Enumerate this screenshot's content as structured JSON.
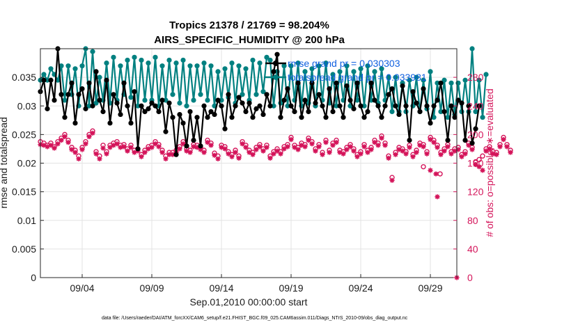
{
  "chart_data": {
    "type": "line",
    "title": "Tropics 21378 / 21769 = 98.204%",
    "subtitle": "AIRS_SPECIFIC_HUMIDITY @ 200 hPa",
    "xlabel": "Sep.01,2010 00:00:00 start",
    "ylabel": "rmse and totalspread",
    "ylabel_right": "# of obs: o=possible; ∗=evaluated",
    "x_ticks": [
      "09/04",
      "09/09",
      "09/14",
      "09/19",
      "09/24",
      "09/29"
    ],
    "x_tick_days": [
      4,
      9,
      14,
      19,
      24,
      29
    ],
    "xlim": [
      1.0,
      30.9
    ],
    "ylim": [
      0,
      0.04
    ],
    "y_ticks": [
      0,
      0.005,
      0.01,
      0.015,
      0.02,
      0.025,
      0.03,
      0.035
    ],
    "y_tick_labels": [
      "0",
      "0.005",
      "0.01",
      "0.015",
      "0.02",
      "0.025",
      "0.03",
      "0.035"
    ],
    "ylim_right": [
      0,
      320
    ],
    "y_ticks_right": [
      0,
      40,
      80,
      120,
      160,
      200,
      240,
      280
    ],
    "y_tick_labels_right": [
      "0",
      "40",
      "80",
      "120",
      "160",
      "200",
      "240",
      "280"
    ],
    "grid": true,
    "legend": [
      {
        "label": "rmse grand pr = 0.030303",
        "series": "rmse"
      },
      {
        "label": "totalspread grand pr = 0.033981",
        "series": "totalspread"
      }
    ],
    "colors": {
      "rmse": "#000000",
      "totalspread": "#008080",
      "obs": "#d4145a",
      "legend_text": "#1060e0"
    },
    "series": [
      {
        "name": "rmse",
        "step_days": 0.25,
        "start_day": 1.0,
        "values": [
          0.0325,
          0.0345,
          0.0295,
          0.0345,
          0.031,
          0.04,
          0.032,
          0.028,
          0.032,
          0.034,
          0.027,
          0.032,
          0.033,
          0.0295,
          0.034,
          0.03,
          0.036,
          0.031,
          0.029,
          0.0345,
          0.027,
          0.032,
          0.0305,
          0.0285,
          0.034,
          0.03,
          0.027,
          0.0325,
          0.0225,
          0.03,
          0.029,
          0.0295,
          0.0305,
          0.03,
          0.029,
          0.031,
          0.0255,
          0.0305,
          0.028,
          0.0215,
          0.0285,
          0.027,
          0.023,
          0.029,
          0.024,
          0.028,
          0.023,
          0.03,
          0.028,
          0.029,
          0.0285,
          0.031,
          0.03,
          0.026,
          0.032,
          0.028,
          0.03,
          0.0315,
          0.0305,
          0.029,
          0.0305,
          0.028,
          0.0295,
          0.03,
          0.0285,
          0.032,
          0.03,
          0.036,
          0.039,
          0.028,
          0.031,
          0.033,
          0.03,
          0.029,
          0.034,
          0.028,
          0.031,
          0.029,
          0.034,
          0.0305,
          0.032,
          0.03,
          0.028,
          0.033,
          0.029,
          0.034,
          0.03,
          0.028,
          0.0335,
          0.031,
          0.0295,
          0.034,
          0.03,
          0.028,
          0.029,
          0.034,
          0.031,
          0.03,
          0.028,
          0.03,
          0.032,
          0.033,
          0.03,
          0.0285,
          0.0335,
          0.03,
          0.024,
          0.0325,
          0.0305,
          0.029,
          0.033,
          0.03,
          0.027,
          0.03,
          0.031,
          0.034,
          0.029,
          0.024,
          0.03,
          0.028,
          0.031,
          0.0305,
          0.024,
          0.03,
          0.0235,
          0.026,
          0.03
        ]
      },
      {
        "name": "totalspread",
        "step_days": 0.25,
        "start_day": 1.0,
        "values": [
          0.0345,
          0.0355,
          0.0345,
          0.0365,
          0.0355,
          0.0345,
          0.037,
          0.031,
          0.037,
          0.032,
          0.0365,
          0.03,
          0.037,
          0.04,
          0.03,
          0.0395,
          0.0305,
          0.035,
          0.031,
          0.0375,
          0.0305,
          0.0385,
          0.031,
          0.037,
          0.032,
          0.038,
          0.0315,
          0.0385,
          0.03,
          0.038,
          0.031,
          0.0375,
          0.031,
          0.0385,
          0.03,
          0.037,
          0.031,
          0.038,
          0.032,
          0.0375,
          0.0305,
          0.038,
          0.03,
          0.037,
          0.031,
          0.037,
          0.032,
          0.0375,
          0.031,
          0.037,
          0.03,
          0.036,
          0.031,
          0.0365,
          0.0315,
          0.0375,
          0.0305,
          0.037,
          0.032,
          0.0365,
          0.031,
          0.038,
          0.032,
          0.0375,
          0.0325,
          0.0385,
          0.038,
          0.03,
          0.036,
          0.0305,
          0.037,
          0.03,
          0.037,
          0.031,
          0.0375,
          0.03,
          0.036,
          0.0305,
          0.0365,
          0.03,
          0.037,
          0.031,
          0.0375,
          0.0305,
          0.0355,
          0.03,
          0.036,
          0.031,
          0.037,
          0.03,
          0.036,
          0.031,
          0.0365,
          0.03,
          0.037,
          0.031,
          0.036,
          0.0305,
          0.0365,
          0.031,
          0.035,
          0.029,
          0.035,
          0.029,
          0.034,
          0.029,
          0.0345,
          0.03,
          0.035,
          0.029,
          0.0345,
          0.0295,
          0.036,
          0.028,
          0.034,
          0.029,
          0.0345,
          0.028,
          0.034,
          0.0285,
          0.034,
          0.029,
          0.0345,
          0.029,
          0.04,
          0.029,
          0.0345,
          0.028,
          0.0355
        ]
      },
      {
        "name": "obs_possible",
        "axis": "right",
        "step_days": 0.25,
        "start_day": 1.0,
        "values": [
          190,
          188,
          185,
          188,
          183,
          190,
          195,
          200,
          192,
          182,
          178,
          170,
          182,
          190,
          200,
          205,
          176,
          170,
          185,
          176,
          185,
          188,
          190,
          185,
          186,
          180,
          185,
          178,
          180,
          172,
          178,
          183,
          185,
          190,
          186,
          178,
          170,
          175,
          175,
          178,
          183,
          190,
          180,
          178,
          186,
          185,
          182,
          178,
          192,
          188,
          174,
          170,
          185,
          183,
          176,
          172,
          178,
          170,
          190,
          185,
          178,
          175,
          182,
          186,
          180,
          185,
          170,
          176,
          180,
          176,
          183,
          186,
          196,
          185,
          182,
          188,
          186,
          195,
          190,
          180,
          186,
          175,
          192,
          178,
          188,
          192,
          178,
          176,
          182,
          186,
          180,
          172,
          176,
          186,
          178,
          182,
          192,
          188,
          198,
          188,
          170,
          140,
          175,
          182,
          180,
          176,
          185,
          172,
          178,
          188,
          186,
          176,
          196,
          192,
          185,
          175,
          180,
          186,
          176,
          180,
          182,
          172,
          176,
          188,
          182,
          162,
          165,
          170,
          180,
          183,
          176,
          175,
          186,
          196,
          186,
          178
        ]
      },
      {
        "name": "obs_evaluated",
        "axis": "right",
        "step_days": 0.25,
        "start_day": 1.0,
        "values": [
          186,
          185,
          183,
          185,
          181,
          187,
          192,
          197,
          189,
          179,
          175,
          166,
          179,
          187,
          197,
          202,
          173,
          166,
          181,
          173,
          182,
          185,
          187,
          182,
          183,
          177,
          182,
          175,
          177,
          169,
          175,
          180,
          182,
          187,
          183,
          175,
          166,
          172,
          172,
          175,
          180,
          187,
          177,
          175,
          183,
          182,
          179,
          175,
          189,
          185,
          171,
          166,
          182,
          180,
          173,
          169,
          175,
          167,
          187,
          182,
          175,
          172,
          179,
          183,
          177,
          182,
          167,
          173,
          177,
          173,
          180,
          183,
          193,
          182,
          179,
          185,
          183,
          192,
          187,
          177,
          183,
          172,
          189,
          175,
          185,
          189,
          175,
          173,
          179,
          183,
          177,
          169,
          173,
          183,
          175,
          179,
          189,
          185,
          195,
          185,
          167,
          136,
          172,
          179,
          177,
          173,
          182,
          169,
          175,
          185,
          183,
          173,
          193,
          189,
          182,
          172,
          177,
          183,
          173,
          177,
          179,
          169,
          173,
          185,
          179,
          158,
          155,
          150,
          177,
          180,
          173,
          172,
          183,
          193,
          183,
          175
        ]
      }
    ],
    "obs_extra_points": [
      {
        "day": 28.5,
        "value": 155,
        "kind": "possible"
      },
      {
        "day": 29.0,
        "value": 150,
        "kind": "evaluated"
      },
      {
        "day": 29.4,
        "value": 145,
        "kind": "evaluated"
      },
      {
        "day": 29.7,
        "value": 145,
        "kind": "possible"
      },
      {
        "day": 29.5,
        "value": 113,
        "kind": "evaluated"
      },
      {
        "day": 30.9,
        "value": 0,
        "kind": "evaluated"
      }
    ]
  },
  "footer": "data file: /Users/raeder/DAI/ATM_forcXX/CAM6_setup/f.e21.FHIST_BGC.f09_025.CAM6assim.011/Diags_NTrS_2010-09/obs_diag_output.nc"
}
